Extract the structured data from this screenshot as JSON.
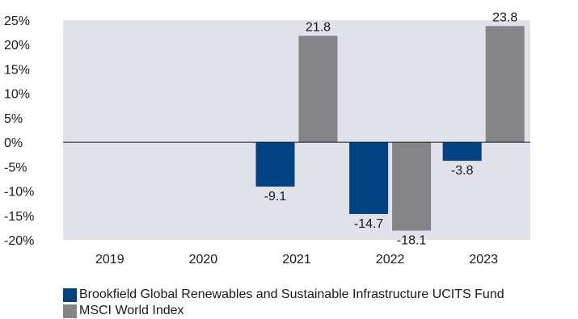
{
  "chart_data": {
    "type": "bar",
    "categories": [
      "2019",
      "2020",
      "2021",
      "2022",
      "2023"
    ],
    "series": [
      {
        "name": "Brookfield Global Renewables and Sustainable Infrastructure UCITS Fund",
        "color": "#034282",
        "values": [
          null,
          null,
          -9.1,
          -14.7,
          -3.8
        ],
        "labels": [
          null,
          null,
          "-9.1",
          "-14.7",
          "-3.8"
        ]
      },
      {
        "name": "MSCI World Index",
        "color": "#858587",
        "values": [
          null,
          null,
          21.8,
          -18.1,
          23.8
        ],
        "labels": [
          null,
          null,
          "21.8",
          "-18.1",
          "23.8"
        ]
      }
    ],
    "y_ticks": [
      25,
      20,
      15,
      10,
      5,
      0,
      -5,
      -10,
      -15,
      -20
    ],
    "y_tick_labels": [
      "25%",
      "20%",
      "15%",
      "10%",
      "5%",
      "0%",
      "-5%",
      "-10%",
      "-15%",
      "-20%"
    ],
    "ylim": [
      -20,
      25
    ],
    "title": "",
    "xlabel": "",
    "ylabel": "",
    "grid": false,
    "legend": "bottom",
    "plot_background": "#e1e1ea"
  }
}
